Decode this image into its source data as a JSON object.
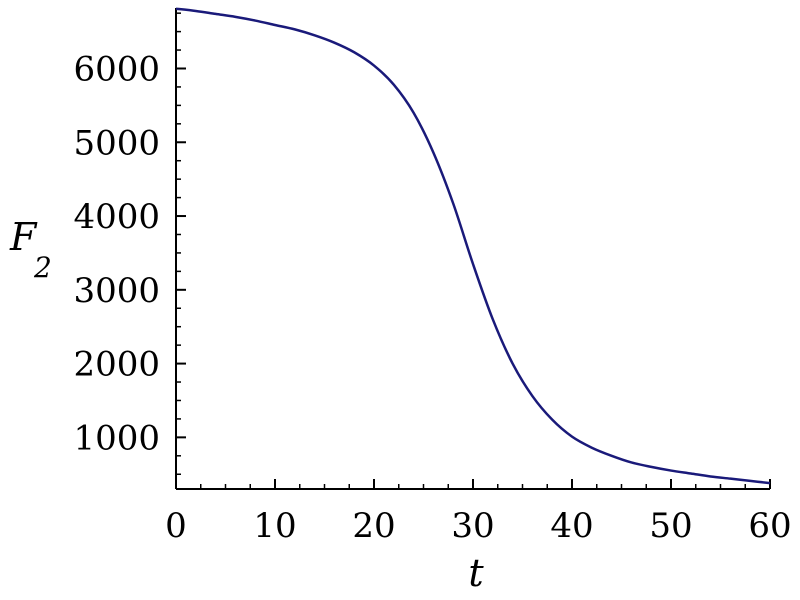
{
  "chart_data": {
    "type": "line",
    "title": "",
    "xlabel": "t",
    "ylabel": "F",
    "ylabel_subscript": "2",
    "xlim": [
      0,
      60
    ],
    "ylim": [
      300,
      6820
    ],
    "x_ticks": [
      "0",
      "10",
      "20",
      "30",
      "40",
      "50",
      "60"
    ],
    "y_ticks": [
      "1000",
      "2000",
      "3000",
      "4000",
      "5000",
      "6000"
    ],
    "grid": false,
    "line_color": "#1a1a7a",
    "series": [
      {
        "x": [
          0,
          2,
          4,
          6,
          8,
          10,
          12,
          14,
          16,
          18,
          20,
          22,
          24,
          26,
          28,
          30,
          32,
          34,
          36,
          38,
          40,
          42,
          44,
          46,
          48,
          50,
          52,
          54,
          56,
          58,
          60
        ],
        "values": [
          6810,
          6780,
          6740,
          6700,
          6650,
          6590,
          6530,
          6450,
          6350,
          6220,
          6040,
          5780,
          5400,
          4860,
          4170,
          3350,
          2600,
          2000,
          1560,
          1240,
          1010,
          860,
          750,
          660,
          600,
          550,
          510,
          470,
          440,
          410,
          380
        ]
      }
    ]
  }
}
